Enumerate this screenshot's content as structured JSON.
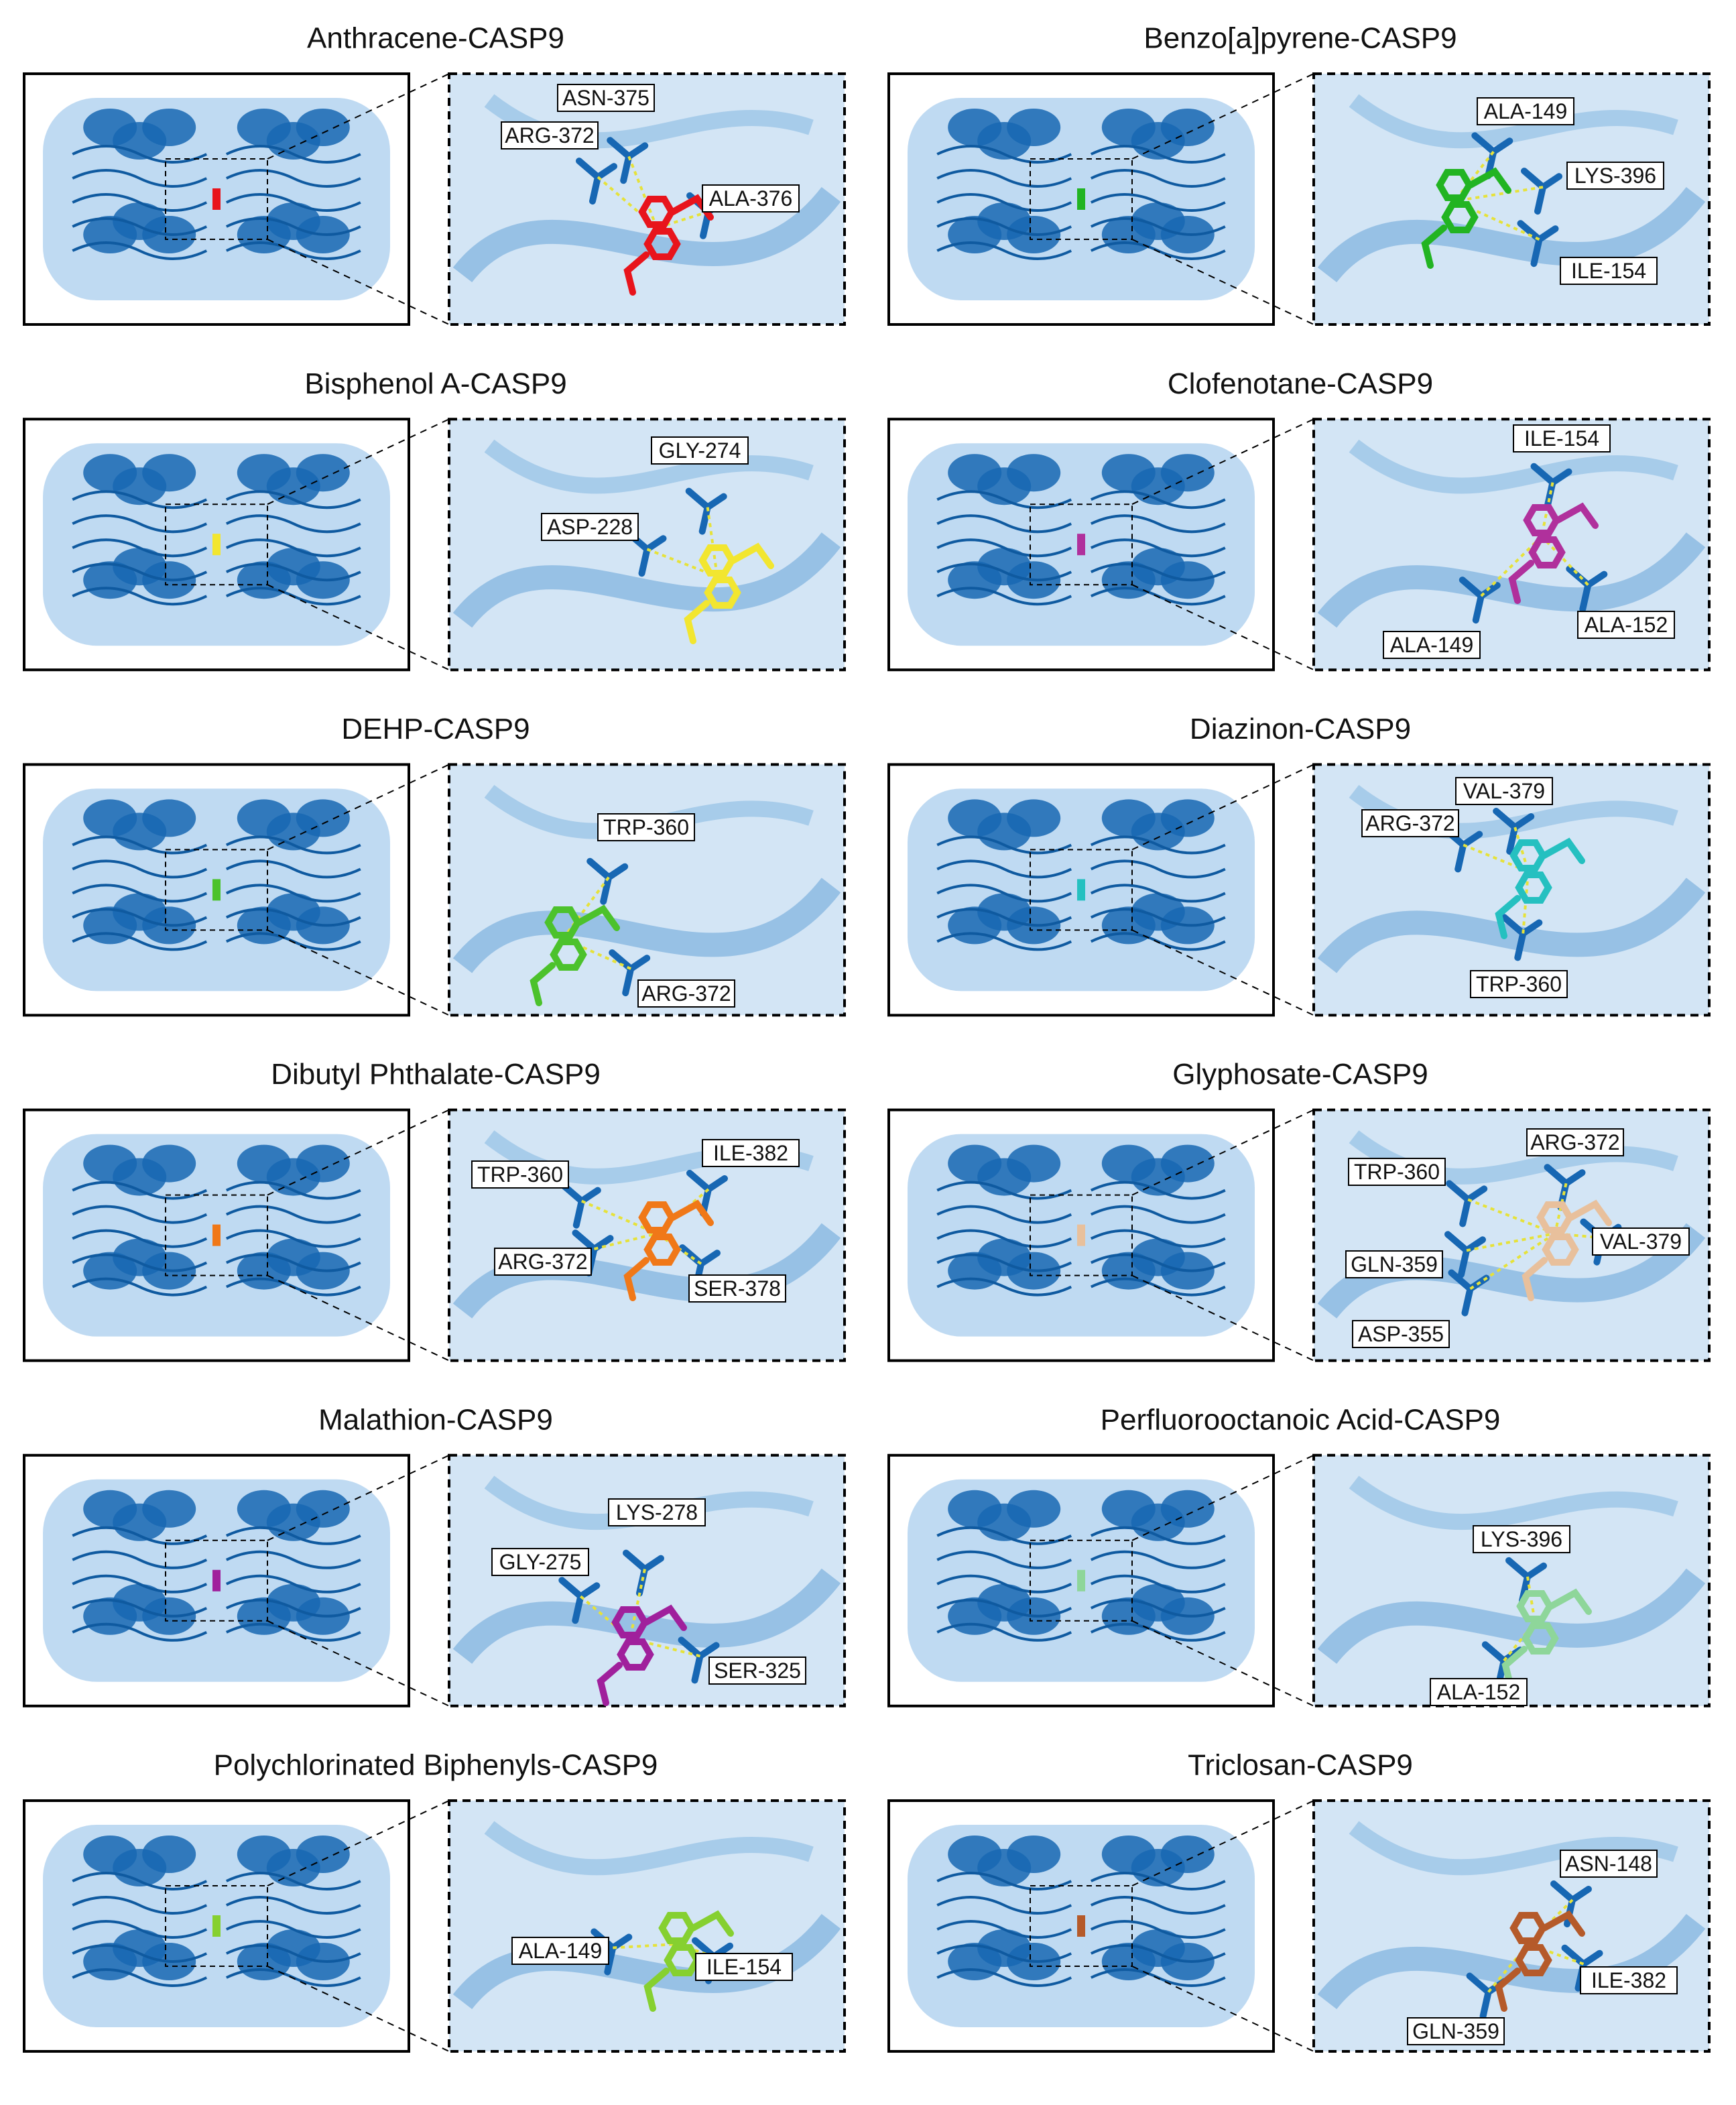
{
  "panels": [
    {
      "title": "Anthracene-CASP9",
      "residues": [
        "ASN-375",
        "ARG-372",
        "ALA-376"
      ]
    },
    {
      "title": "Benzo[a]pyrene-CASP9",
      "residues": [
        "ALA-149",
        "LYS-396",
        "ILE-154"
      ]
    },
    {
      "title": "Bisphenol A-CASP9",
      "residues": [
        "GLY-274",
        "ASP-228"
      ]
    },
    {
      "title": "Clofenotane-CASP9",
      "residues": [
        "ILE-154",
        "ALA-152",
        "ALA-149"
      ]
    },
    {
      "title": "DEHP-CASP9",
      "residues": [
        "TRP-360",
        "ARG-372"
      ]
    },
    {
      "title": "Diazinon-CASP9",
      "residues": [
        "VAL-379",
        "ARG-372",
        "TRP-360"
      ]
    },
    {
      "title": "Dibutyl Phthalate-CASP9",
      "residues": [
        "ILE-382",
        "TRP-360",
        "ARG-372",
        "SER-378"
      ]
    },
    {
      "title": "Glyphosate-CASP9",
      "residues": [
        "ARG-372",
        "TRP-360",
        "VAL-379",
        "GLN-359",
        "ASP-355"
      ]
    },
    {
      "title": "Malathion-CASP9",
      "residues": [
        "LYS-278",
        "GLY-275",
        "SER-325"
      ]
    },
    {
      "title": "Perfluorooctanoic Acid-CASP9",
      "residues": [
        "LYS-396",
        "ALA-152"
      ]
    },
    {
      "title": "Polychlorinated Biphenyls-CASP9",
      "residues": [
        "ALA-149",
        "ILE-154"
      ]
    },
    {
      "title": "Triclosan-CASP9",
      "residues": [
        "ASN-148",
        "ILE-382",
        "GLN-359"
      ]
    }
  ]
}
